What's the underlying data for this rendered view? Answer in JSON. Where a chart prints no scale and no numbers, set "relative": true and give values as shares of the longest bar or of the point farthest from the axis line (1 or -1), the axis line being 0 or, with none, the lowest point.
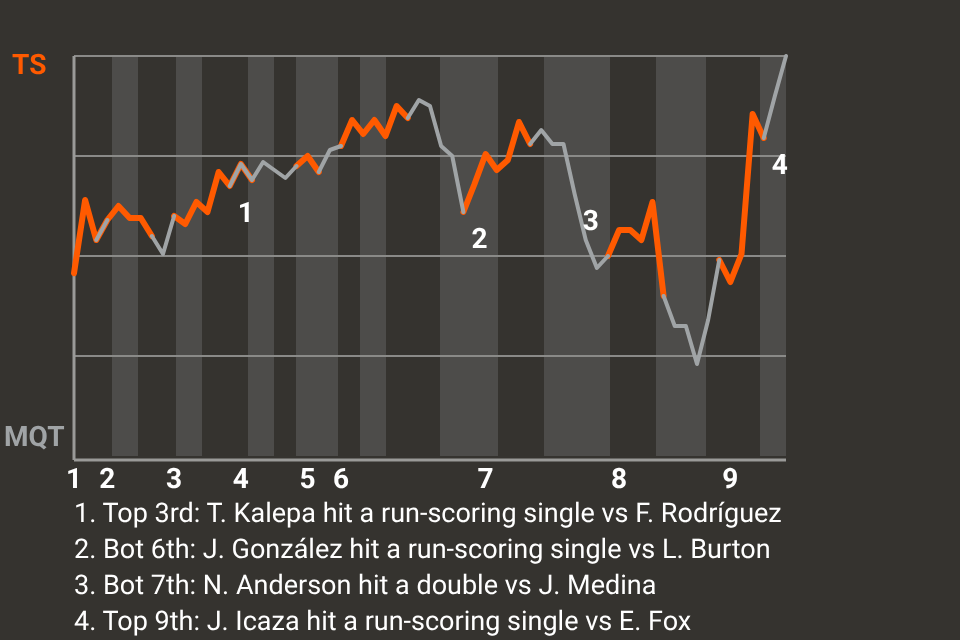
{
  "chart_data": {
    "type": "line",
    "relative": true,
    "categories": [
      "1",
      null,
      null,
      "2",
      null,
      null,
      null,
      null,
      null,
      "3",
      null,
      null,
      null,
      null,
      null,
      "4",
      null,
      null,
      null,
      null,
      null,
      "5",
      null,
      null,
      "6",
      null,
      null,
      null,
      null,
      null,
      null,
      null,
      null,
      null,
      null,
      null,
      null,
      "7",
      null,
      null,
      null,
      null,
      null,
      null,
      null,
      null,
      null,
      null,
      null,
      "8",
      null,
      null,
      null,
      null,
      null,
      null,
      null,
      null,
      null,
      "9",
      null,
      null,
      null,
      null,
      null
    ],
    "grid": "y",
    "marker": "none",
    "line_style": "solid",
    "series": [
      {
        "color": "#ff5a00",
        "values": [
          0.457,
          0.64,
          0.54,
          0.59,
          0.625,
          0.595,
          0.595,
          0.55,
          null,
          0.6,
          0.58,
          0.635,
          0.61,
          0.71,
          0.675,
          0.73,
          0.69,
          null,
          null,
          null,
          0.725,
          0.75,
          0.71,
          null,
          0.775,
          0.84,
          0.805,
          0.84,
          0.8,
          0.875,
          0.845,
          null,
          null,
          null,
          null,
          0.61,
          0.68,
          0.755,
          0.715,
          0.74,
          0.835,
          0.78,
          null,
          null,
          null,
          null,
          null,
          null,
          0.5,
          0.565,
          0.565,
          0.54,
          0.635,
          0.4,
          null,
          null,
          null,
          null,
          0.49,
          0.435,
          0.505,
          0.855,
          0.795,
          null,
          null
        ]
      },
      {
        "color": "#a0a4a6",
        "values": [
          null,
          null,
          0.54,
          0.59,
          null,
          null,
          null,
          0.55,
          0.505,
          0.6,
          null,
          null,
          null,
          null,
          0.675,
          0.73,
          0.69,
          0.735,
          0.715,
          0.695,
          0.725,
          null,
          0.71,
          0.765,
          0.775,
          null,
          null,
          null,
          null,
          null,
          0.845,
          0.89,
          0.875,
          0.775,
          0.75,
          0.61,
          null,
          null,
          null,
          null,
          null,
          0.78,
          0.815,
          0.78,
          0.78,
          0.655,
          0.54,
          0.47,
          0.5,
          null,
          null,
          null,
          null,
          0.4,
          0.325,
          0.325,
          0.23,
          0.34,
          0.49,
          null,
          null,
          null,
          0.795,
          0.9,
          1
        ]
      }
    ],
    "annotations": [
      "TS",
      "MQT",
      "1",
      "2",
      "3",
      "4",
      "1. Top 3rd: T. Kalepa hit a run-scoring single vs F. Rodríguez",
      "2. Bot 6th: J. González hit a run-scoring single vs L. Burton",
      "3. Bot 7th: N. Anderson hit a double vs J. Medina",
      "4. Top 9th: J. Icaza hit a run-scoring single vs E. Fox"
    ]
  }
}
